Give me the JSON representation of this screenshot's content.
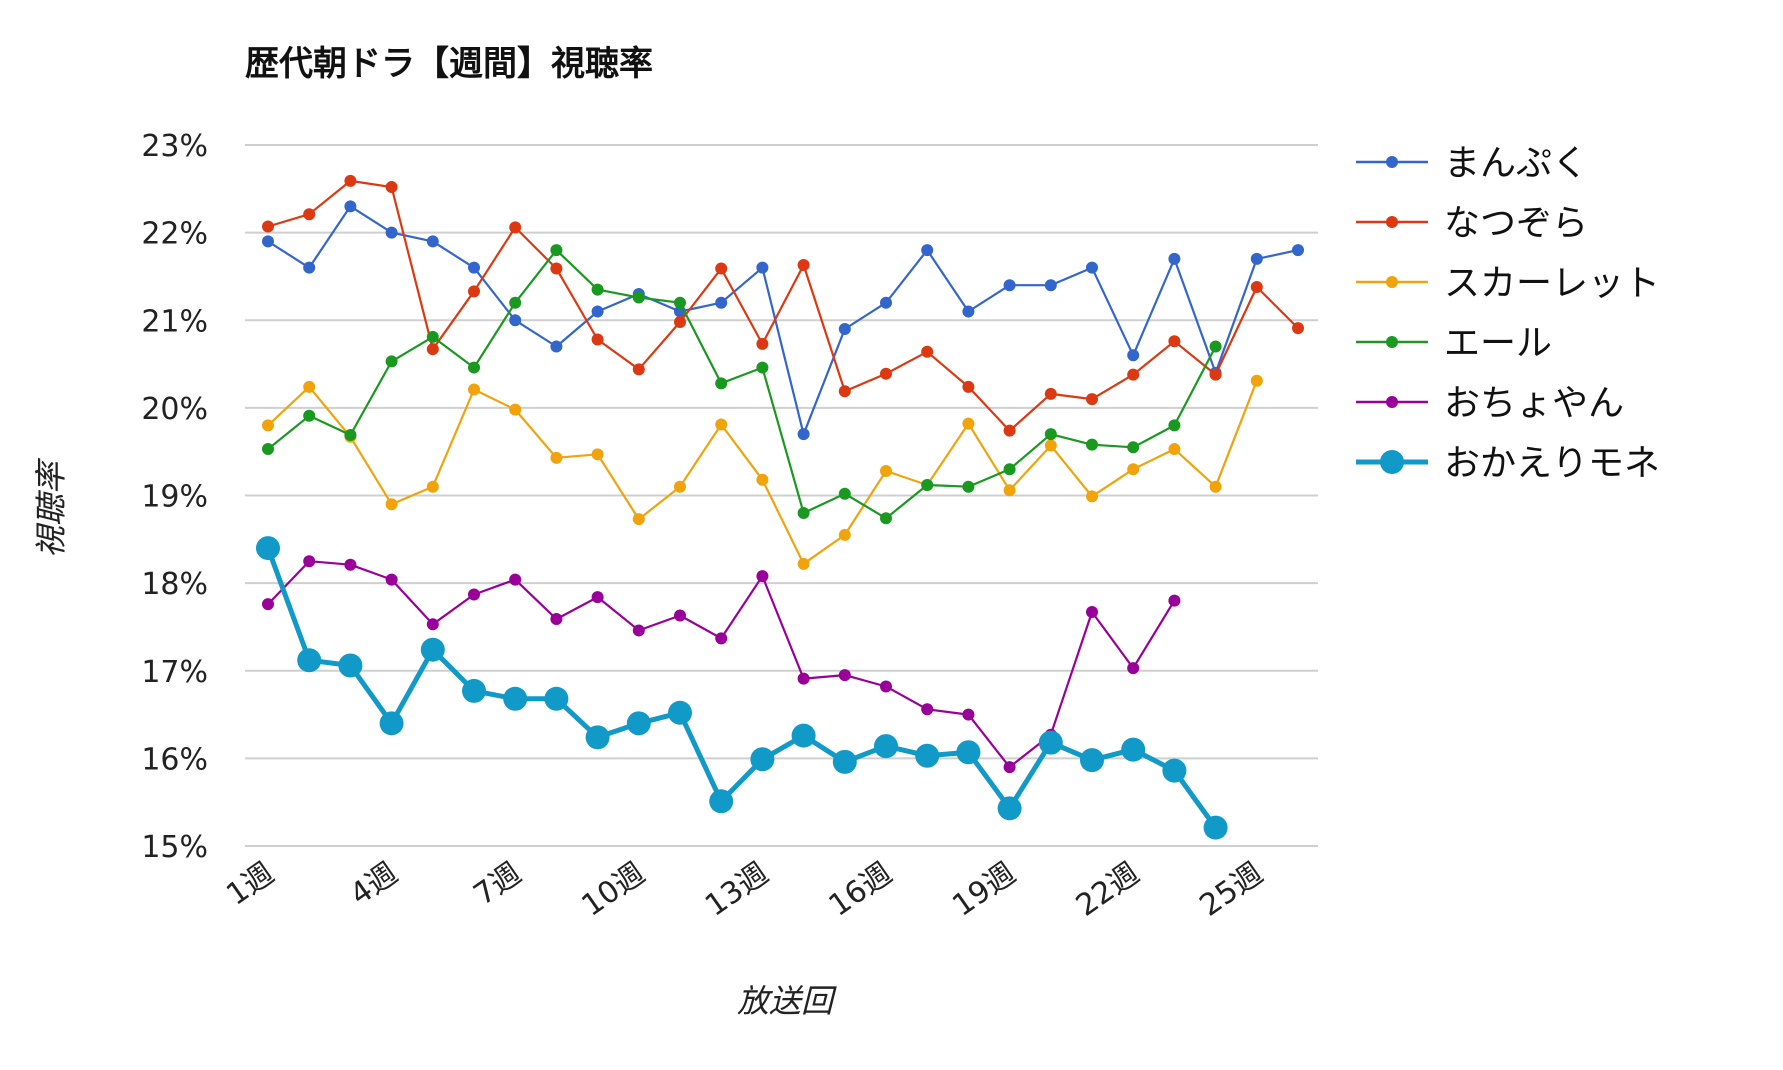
{
  "chart_data": {
    "type": "line",
    "title": "歴代朝ドラ【週間】視聴率",
    "xlabel": "放送回",
    "ylabel": "視聴率",
    "ylim": [
      15,
      23
    ],
    "yticks": [
      "23%",
      "22%",
      "21%",
      "20%",
      "19%",
      "18%",
      "17%",
      "16%",
      "15%"
    ],
    "ytick_values": [
      23,
      22,
      21,
      20,
      19,
      18,
      17,
      16,
      15
    ],
    "x": [
      "1週",
      "2週",
      "3週",
      "4週",
      "5週",
      "6週",
      "7週",
      "8週",
      "9週",
      "10週",
      "11週",
      "12週",
      "13週",
      "14週",
      "15週",
      "16週",
      "17週",
      "18週",
      "19週",
      "20週",
      "21週",
      "22週",
      "23週",
      "24週",
      "25週",
      "26週"
    ],
    "xtick_labels": [
      "1週",
      "4週",
      "7週",
      "10週",
      "13週",
      "16週",
      "19週",
      "22週",
      "25週"
    ],
    "xtick_positions": [
      1,
      4,
      7,
      10,
      13,
      16,
      19,
      22,
      25
    ],
    "grid": true,
    "legend_position": "right",
    "series": [
      {
        "name": "まんぷく",
        "color": "#3366cc",
        "values": [
          21.9,
          21.6,
          22.3,
          22.0,
          21.9,
          21.6,
          21.0,
          20.7,
          21.1,
          21.3,
          21.1,
          21.2,
          21.6,
          19.7,
          20.9,
          21.2,
          21.8,
          21.1,
          21.4,
          21.4,
          21.6,
          20.6,
          21.7,
          20.4,
          21.7,
          21.8
        ]
      },
      {
        "name": "なつぞら",
        "color": "#dc3912",
        "values": [
          22.07,
          22.21,
          22.59,
          22.52,
          20.67,
          21.33,
          22.06,
          21.59,
          20.78,
          20.44,
          20.98,
          21.59,
          20.73,
          21.63,
          20.19,
          20.39,
          20.64,
          20.24,
          19.74,
          20.16,
          20.1,
          20.38,
          20.76,
          20.38,
          21.38,
          20.91
        ]
      },
      {
        "name": "スカーレット",
        "color": "#f0a30a",
        "values": [
          19.8,
          20.24,
          19.67,
          18.9,
          19.1,
          20.21,
          19.98,
          19.43,
          19.47,
          18.73,
          19.1,
          19.81,
          19.18,
          18.22,
          18.55,
          19.28,
          19.12,
          19.82,
          19.06,
          19.57,
          18.99,
          19.3,
          19.53,
          19.1,
          20.31,
          null
        ]
      },
      {
        "name": "エール",
        "color": "#1a9920",
        "values": [
          19.53,
          19.91,
          19.69,
          20.53,
          20.81,
          20.46,
          21.2,
          21.8,
          21.35,
          21.26,
          21.2,
          20.28,
          20.46,
          18.8,
          19.02,
          18.74,
          19.12,
          19.1,
          19.3,
          19.7,
          19.58,
          19.55,
          19.8,
          20.7,
          null,
          null
        ]
      },
      {
        "name": "おちょやん",
        "color": "#990099",
        "values": [
          17.76,
          18.25,
          18.21,
          18.04,
          17.53,
          17.87,
          18.04,
          17.59,
          17.84,
          17.46,
          17.63,
          17.37,
          18.08,
          16.91,
          16.95,
          16.82,
          16.56,
          16.5,
          15.9,
          16.27,
          17.67,
          17.03,
          17.8,
          null,
          null,
          null
        ]
      },
      {
        "name": "おかえりモネ",
        "color": "#1199c8",
        "values": [
          18.4,
          17.12,
          17.06,
          16.4,
          17.24,
          16.77,
          16.68,
          16.68,
          16.24,
          16.4,
          16.52,
          15.51,
          15.99,
          16.26,
          15.96,
          16.14,
          16.03,
          16.07,
          15.43,
          16.18,
          15.98,
          16.1,
          15.86,
          15.21,
          null,
          null
        ]
      }
    ]
  }
}
